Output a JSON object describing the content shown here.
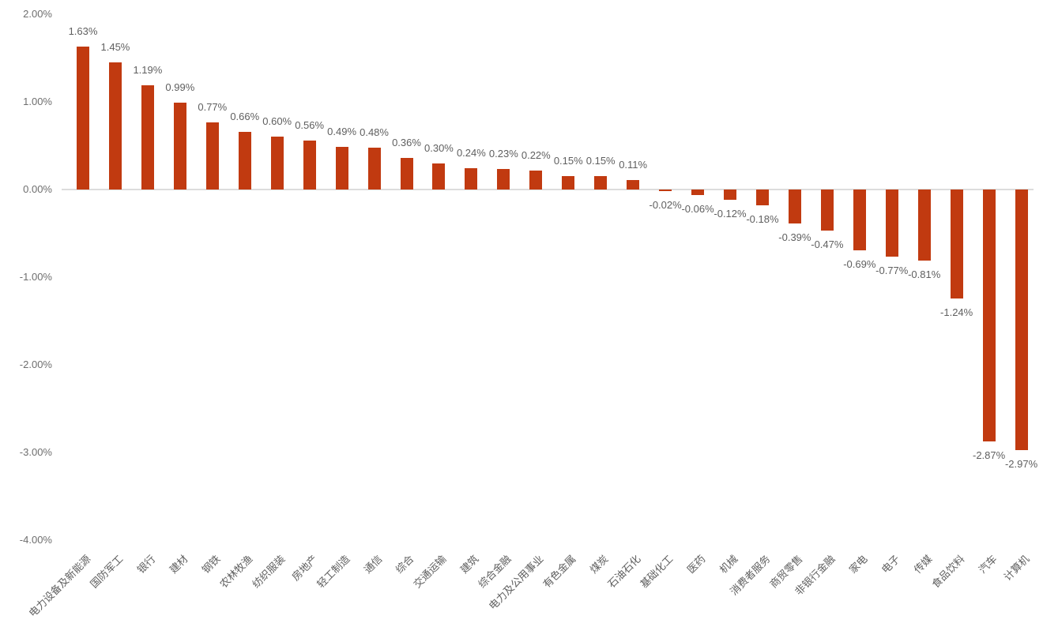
{
  "chart_data": {
    "type": "bar",
    "title": "",
    "xlabel": "",
    "ylabel": "",
    "ylim": [
      -4,
      2
    ],
    "grid": false,
    "legend": "none",
    "bar_color": "#c13a10",
    "value_label_color": "#5f5f5f",
    "tick_label_color": "#6e6e6e",
    "axis_line_color": "#dcdcdc",
    "yticks": [
      {
        "value": 2,
        "label": "2.00%"
      },
      {
        "value": 1,
        "label": "1.00%"
      },
      {
        "value": 0,
        "label": "0.00%"
      },
      {
        "value": -1,
        "label": "-1.00%"
      },
      {
        "value": -2,
        "label": "-2.00%"
      },
      {
        "value": -3,
        "label": "-3.00%"
      },
      {
        "value": -4,
        "label": "-4.00%"
      }
    ],
    "categories": [
      "电力设备及新能源",
      "国防军工",
      "银行",
      "建材",
      "钢铁",
      "农林牧渔",
      "纺织服装",
      "房地产",
      "轻工制造",
      "通信",
      "综合",
      "交通运输",
      "建筑",
      "综合金融",
      "电力及公用事业",
      "有色金属",
      "煤炭",
      "石油石化",
      "基础化工",
      "医药",
      "机械",
      "消费者服务",
      "商贸零售",
      "非银行金融",
      "家电",
      "电子",
      "传媒",
      "食品饮料",
      "汽车",
      "计算机"
    ],
    "values": [
      1.63,
      1.45,
      1.19,
      0.99,
      0.77,
      0.66,
      0.6,
      0.56,
      0.49,
      0.48,
      0.36,
      0.3,
      0.24,
      0.23,
      0.22,
      0.15,
      0.15,
      0.11,
      -0.02,
      -0.06,
      -0.12,
      -0.18,
      -0.39,
      -0.47,
      -0.69,
      -0.77,
      -0.81,
      -1.24,
      -2.87,
      -2.97
    ],
    "value_labels": [
      "1.63%",
      "1.45%",
      "1.19%",
      "0.99%",
      "0.77%",
      "0.66%",
      "0.60%",
      "0.56%",
      "0.49%",
      "0.48%",
      "0.36%",
      "0.30%",
      "0.24%",
      "0.23%",
      "0.22%",
      "0.15%",
      "0.15%",
      "0.11%",
      "-0.02%",
      "-0.06%",
      "-0.12%",
      "-0.18%",
      "-0.39%",
      "-0.47%",
      "-0.69%",
      "-0.77%",
      "-0.81%",
      "-1.24%",
      "-2.87%",
      "-2.97%"
    ]
  }
}
